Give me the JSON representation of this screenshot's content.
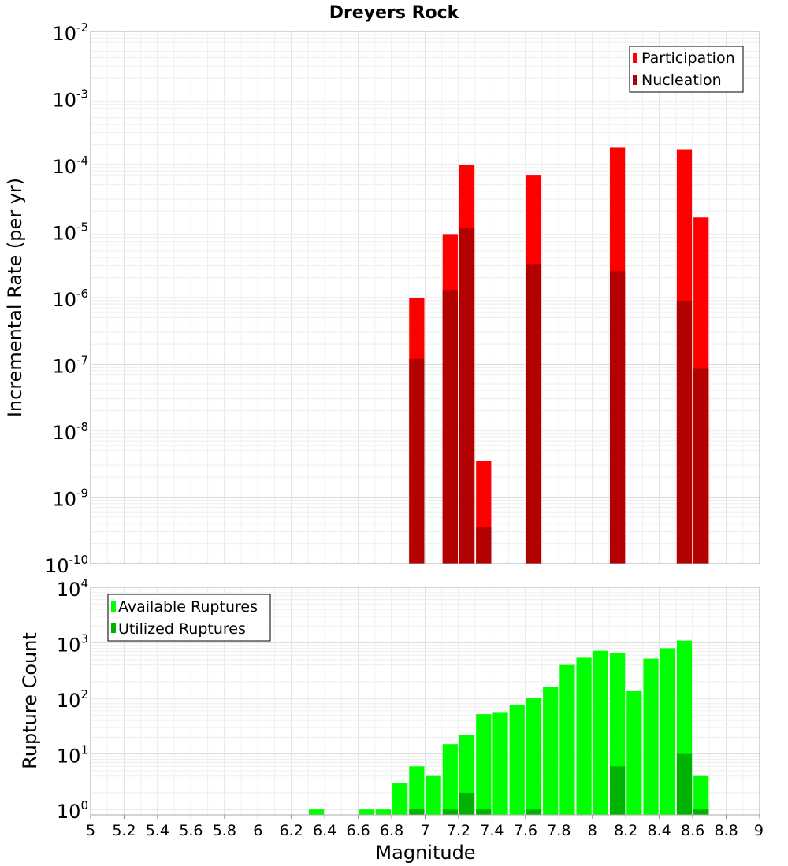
{
  "chart_data": [
    {
      "type": "bar",
      "title": "Dreyers Rock",
      "ylabel": "Incremental Rate (per yr)",
      "xlabel": "",
      "y_scale": "log",
      "ylim": [
        1e-10,
        0.01
      ],
      "xlim": [
        5,
        9
      ],
      "grid": true,
      "legend_position": "top-right",
      "y_ticks": [
        {
          "base": "10",
          "exp": "-10",
          "value": 1e-10
        },
        {
          "base": "10",
          "exp": "-9",
          "value": 1e-09
        },
        {
          "base": "10",
          "exp": "-8",
          "value": 1e-08
        },
        {
          "base": "10",
          "exp": "-7",
          "value": 1e-07
        },
        {
          "base": "10",
          "exp": "-6",
          "value": 1e-06
        },
        {
          "base": "10",
          "exp": "-5",
          "value": 1e-05
        },
        {
          "base": "10",
          "exp": "-4",
          "value": 0.0001
        },
        {
          "base": "10",
          "exp": "-3",
          "value": 0.001
        },
        {
          "base": "10",
          "exp": "-2",
          "value": 0.01
        }
      ],
      "series": [
        {
          "name": "Participation",
          "color": "#ff0000",
          "points": [
            {
              "x": 6.95,
              "y": 1e-06
            },
            {
              "x": 7.15,
              "y": 9e-06
            },
            {
              "x": 7.25,
              "y": 0.0001
            },
            {
              "x": 7.35,
              "y": 3.5e-09
            },
            {
              "x": 7.65,
              "y": 7e-05
            },
            {
              "x": 8.15,
              "y": 0.00018
            },
            {
              "x": 8.55,
              "y": 0.00017
            },
            {
              "x": 8.65,
              "y": 1.6e-05
            }
          ]
        },
        {
          "name": "Nucleation",
          "color": "#b30000",
          "points": [
            {
              "x": 6.95,
              "y": 1.2e-07
            },
            {
              "x": 7.15,
              "y": 1.3e-06
            },
            {
              "x": 7.25,
              "y": 1.1e-05
            },
            {
              "x": 7.35,
              "y": 3.5e-10
            },
            {
              "x": 7.65,
              "y": 3.2e-06
            },
            {
              "x": 8.15,
              "y": 2.5e-06
            },
            {
              "x": 8.55,
              "y": 9e-07
            },
            {
              "x": 8.65,
              "y": 8.5e-08
            }
          ]
        }
      ]
    },
    {
      "type": "bar",
      "title": "",
      "ylabel": "Rupture Count",
      "xlabel": "Magnitude",
      "y_scale": "log",
      "ylim": [
        0.8,
        10000
      ],
      "xlim": [
        5,
        9
      ],
      "grid": true,
      "legend_position": "top-left",
      "x_ticks": [
        "5",
        "5.2",
        "5.4",
        "5.6",
        "5.8",
        "6",
        "6.2",
        "6.4",
        "6.6",
        "6.8",
        "7",
        "7.2",
        "7.4",
        "7.6",
        "7.8",
        "8",
        "8.2",
        "8.4",
        "8.6",
        "8.8",
        "9"
      ],
      "y_ticks": [
        {
          "base": "10",
          "exp": "0",
          "value": 1
        },
        {
          "base": "10",
          "exp": "1",
          "value": 10
        },
        {
          "base": "10",
          "exp": "2",
          "value": 100
        },
        {
          "base": "10",
          "exp": "3",
          "value": 1000
        },
        {
          "base": "10",
          "exp": "4",
          "value": 10000
        }
      ],
      "series": [
        {
          "name": "Available Ruptures",
          "color": "#00ff00",
          "points": [
            {
              "x": 6.35,
              "y": 1
            },
            {
              "x": 6.65,
              "y": 1
            },
            {
              "x": 6.75,
              "y": 1
            },
            {
              "x": 6.85,
              "y": 3
            },
            {
              "x": 6.95,
              "y": 6
            },
            {
              "x": 7.05,
              "y": 4
            },
            {
              "x": 7.15,
              "y": 15
            },
            {
              "x": 7.25,
              "y": 22
            },
            {
              "x": 7.35,
              "y": 52
            },
            {
              "x": 7.45,
              "y": 55
            },
            {
              "x": 7.55,
              "y": 75
            },
            {
              "x": 7.65,
              "y": 100
            },
            {
              "x": 7.75,
              "y": 160
            },
            {
              "x": 7.85,
              "y": 400
            },
            {
              "x": 7.95,
              "y": 540
            },
            {
              "x": 8.05,
              "y": 720
            },
            {
              "x": 8.15,
              "y": 660
            },
            {
              "x": 8.25,
              "y": 135
            },
            {
              "x": 8.35,
              "y": 520
            },
            {
              "x": 8.45,
              "y": 800
            },
            {
              "x": 8.55,
              "y": 1100
            },
            {
              "x": 8.65,
              "y": 4
            }
          ]
        },
        {
          "name": "Utilized Ruptures",
          "color": "#00b300",
          "points": [
            {
              "x": 6.95,
              "y": 1
            },
            {
              "x": 7.15,
              "y": 1
            },
            {
              "x": 7.25,
              "y": 2
            },
            {
              "x": 7.35,
              "y": 1
            },
            {
              "x": 7.65,
              "y": 1
            },
            {
              "x": 8.15,
              "y": 6
            },
            {
              "x": 8.55,
              "y": 10
            },
            {
              "x": 8.65,
              "y": 1
            }
          ]
        }
      ]
    }
  ]
}
